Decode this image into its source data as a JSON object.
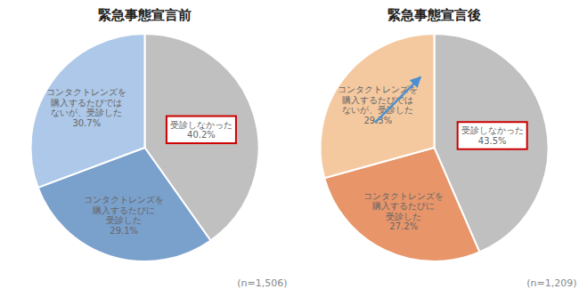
{
  "chart_data": [
    {
      "type": "pie",
      "title": "緊急事態宣言前",
      "categories": [
        "受診しなかった",
        "コンタクトレンズを\n購入するたびに\n受診した",
        "コンタクトレンズを\n購入するたびでは\nないが、受診した"
      ],
      "values": [
        40.2,
        29.1,
        30.7
      ],
      "value_labels": [
        "40.2%",
        "29.1%",
        "30.7%"
      ],
      "data_labels": true,
      "colors": [
        "#c0c0c0",
        "#7aa0cc",
        "#adc8e8"
      ],
      "annotations": [
        "(n=1,506)"
      ]
    },
    {
      "type": "pie",
      "title": "緊急事態宣言後",
      "categories": [
        "受診しなかった",
        "コンタクトレンズを\n購入するたびに\n受診した",
        "コンタクトレンズを\n購入するたびでは\nないが、受診した"
      ],
      "values": [
        43.5,
        27.2,
        29.3
      ],
      "value_labels": [
        "43.5%",
        "27.2%",
        "29.3%"
      ],
      "data_labels": true,
      "colors": [
        "#c0c0c0",
        "#e8956a",
        "#f5c9a0"
      ],
      "annotations": [
        "(n=1,209)"
      ]
    }
  ]
}
